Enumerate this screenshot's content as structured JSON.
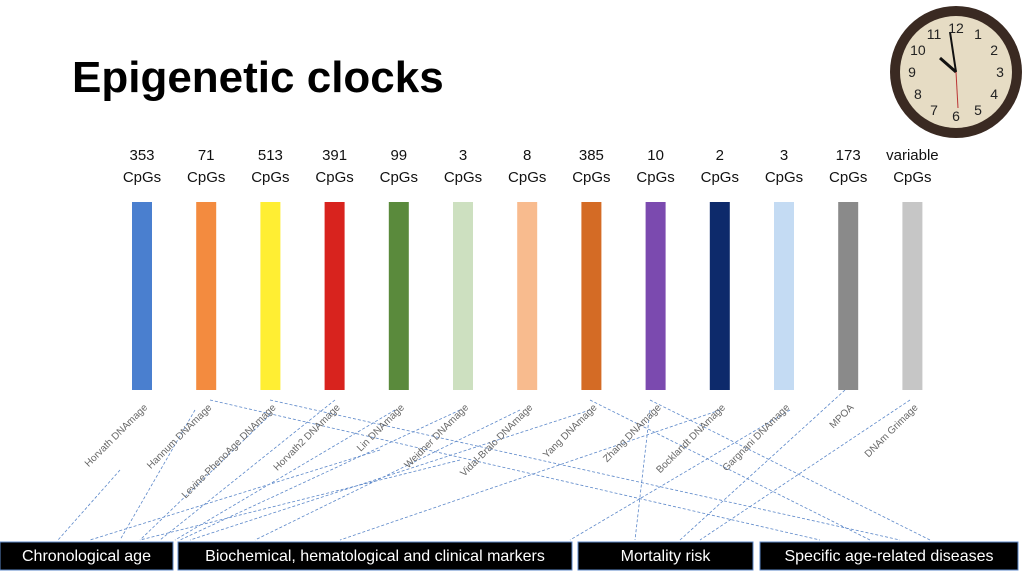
{
  "title": "Epigenetic clocks",
  "clocks": [
    {
      "count": "353",
      "unit": "CpGs",
      "name": "Horvath DNAmage",
      "color": "#4a7fcf"
    },
    {
      "count": "71",
      "unit": "CpGs",
      "name": "Hannum DNAmage",
      "color": "#f38b3f"
    },
    {
      "count": "513",
      "unit": "CpGs",
      "name": "Levine-PhenoAge DNAmage",
      "color": "#ffee33"
    },
    {
      "count": "391",
      "unit": "CpGs",
      "name": "Horvath2 DNAmage",
      "color": "#d8231e"
    },
    {
      "count": "99",
      "unit": "CpGs",
      "name": "Lin DNAmage",
      "color": "#5a8a3c"
    },
    {
      "count": "3",
      "unit": "CpGs",
      "name": "Weidner DNAmage",
      "color": "#cde0c0"
    },
    {
      "count": "8",
      "unit": "CpGs",
      "name": "Vidal-Bralo DNAmage",
      "color": "#f8bb8e"
    },
    {
      "count": "385",
      "unit": "CpGs",
      "name": "Yang DNAmage",
      "color": "#d46b25"
    },
    {
      "count": "10",
      "unit": "CpGs",
      "name": "Zhang DNAmage",
      "color": "#7b4aaf"
    },
    {
      "count": "2",
      "unit": "CpGs",
      "name": "Bocklandt DNAmage",
      "color": "#0d2a6b"
    },
    {
      "count": "3",
      "unit": "CpGs",
      "name": "Gargnani DNAmage",
      "color": "#c4dbf3"
    },
    {
      "count": "173",
      "unit": "CpGs",
      "name": "MPOA",
      "color": "#8a8a8a"
    },
    {
      "count": "variable",
      "unit": "CpGs",
      "name": "DNAm Grimage",
      "color": "#c6c6c6"
    }
  ],
  "outcomes": [
    "Chronological age",
    "Biochemical, hematological and clinical markers",
    "Mortality risk",
    "Specific age-related diseases"
  ],
  "clock_face": [
    "12",
    "1",
    "2",
    "3",
    "4",
    "5",
    "6",
    "7",
    "8",
    "9",
    "10",
    "11"
  ]
}
